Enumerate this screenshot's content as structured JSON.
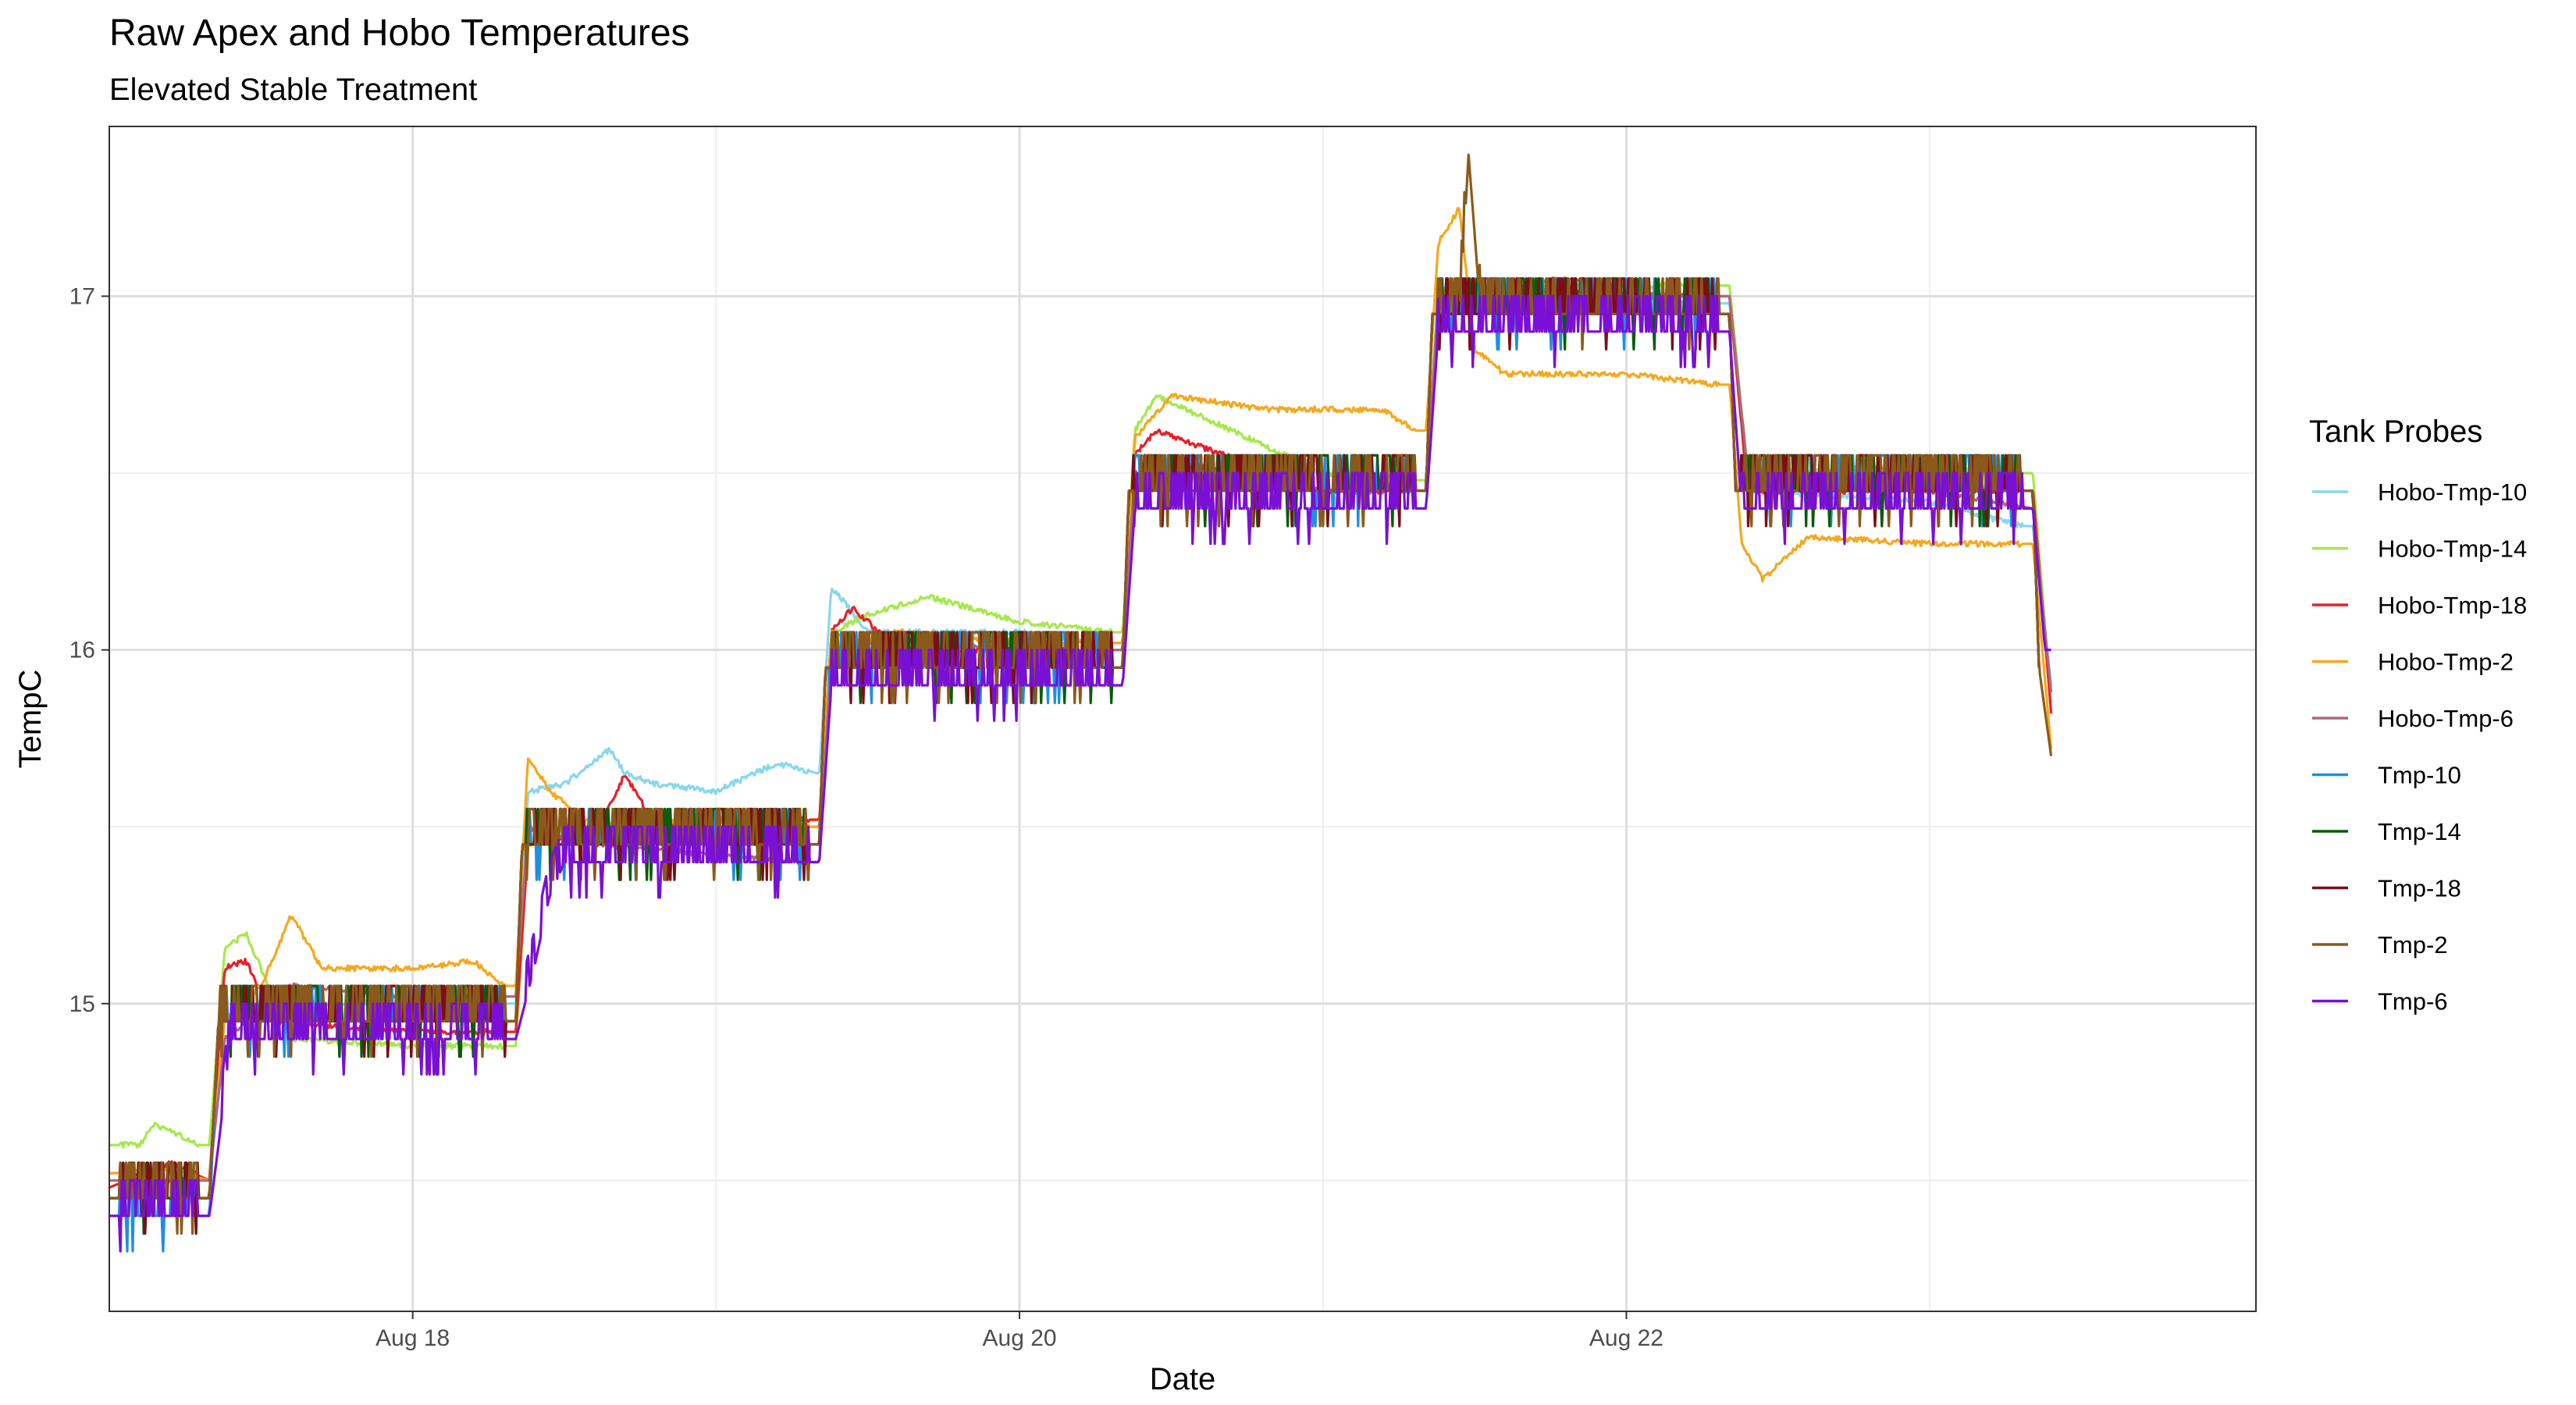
{
  "chart_data": {
    "type": "line",
    "title": "Raw Apex and Hobo Temperatures",
    "subtitle": "Elevated Stable Treatment",
    "xlabel": "Date",
    "ylabel": "TempC",
    "xlim": [
      0.0,
      7.075
    ],
    "ylim": [
      14.13,
      17.48
    ],
    "grid": true,
    "legend_title": "Tank Probes",
    "legend_position": "right",
    "x_ticks": [
      {
        "value": 1.0,
        "label": "Aug 18"
      },
      {
        "value": 3.0,
        "label": "Aug 20"
      },
      {
        "value": 5.0,
        "label": "Aug 22"
      }
    ],
    "y_ticks": [
      {
        "value": 15,
        "label": "15"
      },
      {
        "value": 16,
        "label": "16"
      },
      {
        "value": 17,
        "label": "17"
      }
    ],
    "step_x": [
      0.0,
      0.33,
      1.34,
      2.34,
      3.34,
      4.34,
      5.34,
      6.34,
      6.41
    ],
    "series": [
      {
        "name": "Hobo-Tmp-10",
        "color": "#87d7ee",
        "x": [
          0.0,
          0.33,
          0.36,
          0.5,
          1.0,
          1.34,
          1.38,
          1.5,
          1.65,
          1.7,
          1.8,
          2.0,
          2.2,
          2.34,
          2.38,
          2.5,
          3.0,
          3.3,
          3.34,
          3.38,
          3.7,
          4.0,
          4.3,
          4.34,
          4.38,
          5.0,
          5.3,
          5.34,
          5.4,
          6.0,
          6.3,
          6.34,
          6.4
        ],
        "y": [
          14.5,
          14.5,
          14.95,
          15.0,
          15.0,
          15.0,
          15.6,
          15.62,
          15.72,
          15.65,
          15.62,
          15.6,
          15.68,
          15.65,
          16.18,
          16.05,
          16.05,
          16.02,
          16.02,
          16.55,
          16.5,
          16.5,
          16.45,
          16.45,
          17.0,
          17.0,
          16.98,
          16.98,
          16.45,
          16.42,
          16.35,
          16.35,
          15.9
        ]
      },
      {
        "name": "Hobo-Tmp-14",
        "color": "#a6e84d",
        "x": [
          0.0,
          0.1,
          0.15,
          0.3,
          0.33,
          0.38,
          0.45,
          0.6,
          1.0,
          1.3,
          1.34,
          1.38,
          1.5,
          2.0,
          2.3,
          2.34,
          2.38,
          2.5,
          2.7,
          3.0,
          3.3,
          3.34,
          3.38,
          3.45,
          4.0,
          4.3,
          4.34,
          4.38,
          5.0,
          5.3,
          5.34,
          5.4,
          5.8,
          6.3,
          6.34,
          6.4
        ],
        "y": [
          14.6,
          14.6,
          14.66,
          14.6,
          14.6,
          15.15,
          15.2,
          14.9,
          14.88,
          14.88,
          14.88,
          15.45,
          15.5,
          15.52,
          15.5,
          15.5,
          16.05,
          16.1,
          16.15,
          16.08,
          16.05,
          16.05,
          16.62,
          16.72,
          16.5,
          16.48,
          16.48,
          17.02,
          17.03,
          17.03,
          17.03,
          16.5,
          16.52,
          16.5,
          16.5,
          15.85
        ]
      },
      {
        "name": "Hobo-Tmp-18",
        "color": "#e8202a",
        "x": [
          0.0,
          0.2,
          0.33,
          0.38,
          0.45,
          0.55,
          1.0,
          1.34,
          1.38,
          1.6,
          1.7,
          1.8,
          2.0,
          2.34,
          2.38,
          2.45,
          2.6,
          3.0,
          3.34,
          3.38,
          3.45,
          4.0,
          4.34,
          4.38,
          4.6,
          5.0,
          5.34,
          5.4,
          6.0,
          6.34,
          6.4
        ],
        "y": [
          14.48,
          14.55,
          14.5,
          15.1,
          15.12,
          14.95,
          14.92,
          14.92,
          15.45,
          15.48,
          15.65,
          15.5,
          15.52,
          15.52,
          16.05,
          16.12,
          16.0,
          16.0,
          16.0,
          16.55,
          16.62,
          16.45,
          16.45,
          16.98,
          17.02,
          17.0,
          17.0,
          16.45,
          16.45,
          16.45,
          15.82
        ]
      },
      {
        "name": "Hobo-Tmp-2",
        "color": "#f5a81d",
        "x": [
          0.0,
          0.2,
          0.33,
          0.38,
          0.5,
          0.6,
          0.7,
          1.0,
          1.2,
          1.3,
          1.34,
          1.38,
          1.45,
          1.6,
          2.0,
          2.3,
          2.34,
          2.38,
          2.45,
          2.6,
          3.0,
          3.3,
          3.34,
          3.38,
          3.5,
          3.8,
          4.0,
          4.2,
          4.3,
          4.34,
          4.38,
          4.45,
          4.5,
          4.6,
          5.0,
          5.3,
          5.34,
          5.38,
          5.45,
          5.6,
          6.0,
          6.3,
          6.34,
          6.4
        ],
        "y": [
          14.52,
          14.53,
          14.5,
          14.95,
          15.05,
          15.25,
          15.1,
          15.1,
          15.12,
          15.05,
          15.05,
          15.7,
          15.6,
          15.5,
          15.52,
          15.5,
          15.5,
          16.05,
          16.02,
          16.05,
          16.02,
          16.02,
          16.02,
          16.6,
          16.72,
          16.68,
          16.68,
          16.68,
          16.62,
          16.62,
          17.15,
          17.25,
          16.85,
          16.78,
          16.78,
          16.75,
          16.75,
          16.3,
          16.2,
          16.32,
          16.3,
          16.3,
          16.3,
          15.72
        ]
      },
      {
        "name": "Hobo-Tmp-6",
        "color": "#b26680",
        "x": [
          0.0,
          0.2,
          0.33,
          0.38,
          0.6,
          1.0,
          1.2,
          1.34,
          1.38,
          1.6,
          2.0,
          2.3,
          2.34,
          2.38,
          2.6,
          3.0,
          3.34,
          3.38,
          3.6,
          4.0,
          4.34,
          4.38,
          4.8,
          5.0,
          5.34,
          5.4,
          5.8,
          6.34,
          6.4
        ],
        "y": [
          14.5,
          14.5,
          14.5,
          14.9,
          15.05,
          15.02,
          15.02,
          15.02,
          15.5,
          15.45,
          15.42,
          15.4,
          15.4,
          16.0,
          16.03,
          16.0,
          16.0,
          16.5,
          16.52,
          16.45,
          16.45,
          17.0,
          17.05,
          17.0,
          17.0,
          16.5,
          16.48,
          16.4,
          15.88
        ]
      },
      {
        "name": "Tmp-10",
        "color": "#1f8ee3",
        "x": [
          0.0,
          0.33,
          0.36,
          1.0,
          1.34,
          1.36,
          2.0,
          2.34,
          2.36,
          3.0,
          3.34,
          3.36,
          4.0,
          4.34,
          4.36,
          5.0,
          5.34,
          5.36,
          6.0,
          6.34,
          6.36
        ],
        "y": [
          14.4,
          14.4,
          14.95,
          14.95,
          14.95,
          15.45,
          15.45,
          15.45,
          15.95,
          15.95,
          15.95,
          16.45,
          16.45,
          16.45,
          16.95,
          16.95,
          16.95,
          16.45,
          16.45,
          16.45,
          15.95
        ]
      },
      {
        "name": "Tmp-14",
        "color": "#0a5c0a",
        "x": [
          0.0,
          0.33,
          0.36,
          1.0,
          1.34,
          1.36,
          2.0,
          2.34,
          2.36,
          3.0,
          3.34,
          3.36,
          4.0,
          4.34,
          4.36,
          5.0,
          5.34,
          5.36,
          6.0,
          6.34,
          6.36
        ],
        "y": [
          14.45,
          14.45,
          14.95,
          14.95,
          14.95,
          15.45,
          15.45,
          15.45,
          15.95,
          15.95,
          15.95,
          16.45,
          16.45,
          16.45,
          16.95,
          16.95,
          16.95,
          16.45,
          16.45,
          16.45,
          15.95
        ]
      },
      {
        "name": "Tmp-18",
        "color": "#7a0f16",
        "x": [
          0.0,
          0.33,
          0.36,
          1.0,
          1.34,
          1.36,
          2.0,
          2.34,
          2.36,
          3.0,
          3.34,
          3.36,
          4.0,
          4.34,
          4.36,
          5.0,
          5.34,
          5.36,
          6.0,
          6.34,
          6.36
        ],
        "y": [
          14.45,
          14.45,
          14.95,
          14.95,
          14.95,
          15.45,
          15.45,
          15.45,
          15.95,
          15.95,
          15.95,
          16.45,
          16.45,
          16.45,
          16.95,
          16.95,
          16.95,
          16.45,
          16.45,
          16.45,
          15.95
        ]
      },
      {
        "name": "Tmp-2",
        "color": "#8b5a1a",
        "x": [
          0.0,
          0.33,
          0.36,
          1.0,
          1.34,
          1.36,
          2.0,
          2.34,
          2.36,
          3.0,
          3.34,
          3.36,
          4.0,
          4.34,
          4.36,
          4.45,
          4.48,
          4.52,
          5.0,
          5.34,
          5.36,
          6.0,
          6.34,
          6.36,
          6.4
        ],
        "y": [
          14.45,
          14.45,
          14.95,
          14.95,
          14.95,
          15.45,
          15.45,
          15.45,
          15.95,
          15.95,
          15.95,
          16.45,
          16.45,
          16.45,
          16.95,
          16.95,
          17.4,
          16.95,
          16.95,
          16.95,
          16.45,
          16.45,
          16.45,
          15.95,
          15.7
        ]
      },
      {
        "name": "Tmp-6",
        "color": "#7a0fd6",
        "x": [
          0.0,
          0.33,
          0.36,
          0.4,
          1.0,
          1.34,
          1.4,
          1.45,
          1.5,
          2.0,
          2.34,
          2.38,
          3.0,
          3.34,
          3.38,
          4.0,
          4.34,
          4.38,
          5.0,
          5.34,
          5.38,
          6.0,
          6.34,
          6.38,
          6.4
        ],
        "y": [
          14.4,
          14.4,
          14.6,
          14.9,
          14.9,
          14.9,
          15.1,
          15.3,
          15.4,
          15.4,
          15.4,
          15.9,
          15.9,
          15.9,
          16.4,
          16.4,
          16.4,
          16.9,
          16.9,
          16.9,
          16.4,
          16.4,
          16.4,
          16.0,
          16.0
        ]
      }
    ]
  }
}
